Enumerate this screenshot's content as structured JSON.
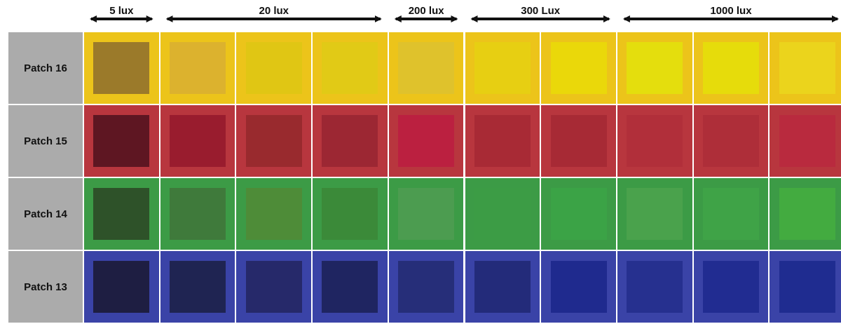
{
  "lux_groups": [
    {
      "label": "5 lux",
      "start_col": 0,
      "end_col": 0
    },
    {
      "label": "20 lux",
      "start_col": 1,
      "end_col": 3
    },
    {
      "label": "200 lux",
      "start_col": 4,
      "end_col": 4
    },
    {
      "label": "300 Lux",
      "start_col": 5,
      "end_col": 6
    },
    {
      "label": "1000 lux",
      "start_col": 7,
      "end_col": 9
    }
  ],
  "rows": [
    {
      "label": "Patch 16",
      "background": "#ecc41a",
      "swatches": [
        "#9b7a2a",
        "#dcb22e",
        "#e0c614",
        "#e1ca16",
        "#dfc22c",
        "#e7cf12",
        "#ead80a",
        "#e4de0d",
        "#e6dc0b",
        "#ebd41c"
      ]
    },
    {
      "label": "Patch 15",
      "background": "#b8363e",
      "swatches": [
        "#5e1622",
        "#991c2e",
        "#992a2e",
        "#9c2733",
        "#bb2040",
        "#a82a35",
        "#a72a35",
        "#b12f3a",
        "#ae2e39",
        "#b92a3e"
      ]
    },
    {
      "label": "Patch 14",
      "background": "#3c9b46",
      "swatches": [
        "#2e5229",
        "#3f7a3b",
        "#4e8c38",
        "#3b8a39",
        "#4c9c50",
        "#3c9c45",
        "#3ba346",
        "#4aa24c",
        "#3fa347",
        "#43ab40"
      ]
    },
    {
      "label": "Patch 13",
      "background": "#3a43a7",
      "swatches": [
        "#1e1e42",
        "#1f2452",
        "#26296a",
        "#1f2561",
        "#262e79",
        "#232b7a",
        "#1f2a8e",
        "#26308f",
        "#212c91",
        "#1f2c90"
      ]
    }
  ]
}
